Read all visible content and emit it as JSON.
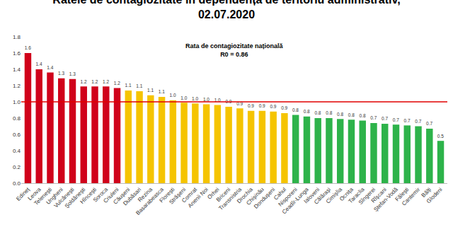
{
  "chart_data": {
    "type": "bar",
    "title": "Ratele de contagiozitate în dependență de teritoriu administrativ,",
    "subtitle": "02.07.2020",
    "annotations": [
      "Rata de contagiozitate națională",
      "R0 = 0.86"
    ],
    "categories": [
      "Edineț",
      "Leova",
      "Telenești",
      "Ungheni",
      "Vulcănești",
      "Șoldănești",
      "Hîncești",
      "Soroca",
      "Criuleni",
      "Căușeni",
      "Dubăsari",
      "Rezina",
      "Basarabeasca",
      "Florești",
      "Strășeni",
      "Comrat",
      "Anenii Noi",
      "Orhei",
      "Briceni",
      "Transnistria",
      "Drochia",
      "Chișinău",
      "Dondușeni",
      "Cahul",
      "Nisporeni",
      "Ceadîr-Lunga",
      "Ialoveni",
      "Călărași",
      "Cimișlia",
      "Ocnița",
      "Taraclia",
      "Sîngerei",
      "Rîșcani",
      "Ștefan-Vodă",
      "Fălești",
      "Cantemir",
      "Bălți",
      "Glodeni"
    ],
    "values": [
      1.6,
      1.4,
      1.36,
      1.29,
      1.28,
      1.19,
      1.19,
      1.19,
      1.17,
      1.14,
      1.13,
      1.08,
      1.06,
      1.02,
      0.99,
      0.98,
      0.97,
      0.96,
      0.94,
      0.92,
      0.89,
      0.89,
      0.88,
      0.86,
      0.84,
      0.82,
      0.8,
      0.8,
      0.79,
      0.78,
      0.77,
      0.74,
      0.73,
      0.72,
      0.71,
      0.7,
      0.67,
      0.52
    ],
    "value_labels": [
      "1.6",
      "1.4",
      "1.4",
      "1.3",
      "1.3",
      "1.2",
      "1.2",
      "1.2",
      "1.2",
      "1.1",
      "1.1",
      "1.1",
      "1.1",
      "1.0",
      "1.0",
      "1.0",
      "1.0",
      "1.0",
      "0.9",
      "0.9",
      "0.9",
      "0.9",
      "0.9",
      "0.9",
      "0.8",
      "0.8",
      "0.8",
      "0.8",
      "0.8",
      "0.8",
      "0.8",
      "0.7",
      "0.7",
      "0.7",
      "0.7",
      "0.7",
      "0.7",
      "0.5"
    ],
    "colors": [
      "#d0021b",
      "#d0021b",
      "#d0021b",
      "#d0021b",
      "#d0021b",
      "#d0021b",
      "#d0021b",
      "#d0021b",
      "#d0021b",
      "#f5c400",
      "#f5c400",
      "#f5c400",
      "#f5c400",
      "#f5c400",
      "#f5c400",
      "#f5c400",
      "#f5c400",
      "#f5c400",
      "#f5c400",
      "#f5c400",
      "#f5c400",
      "#f5c400",
      "#f5c400",
      "#f5c400",
      "#2db34a",
      "#2db34a",
      "#2db34a",
      "#2db34a",
      "#2db34a",
      "#2db34a",
      "#2db34a",
      "#2db34a",
      "#2db34a",
      "#2db34a",
      "#2db34a",
      "#2db34a",
      "#2db34a",
      "#2db34a"
    ],
    "reference_line": 1,
    "ylim": [
      0,
      1.8
    ],
    "yticks": [
      {
        "value": 0,
        "label": "0.0"
      },
      0.2,
      0.4,
      0.6,
      0.8,
      {
        "value": 1,
        "label": "1.0"
      },
      1.2,
      1.4,
      1.6,
      1.8
    ],
    "grid": false,
    "data_labels": true
  }
}
